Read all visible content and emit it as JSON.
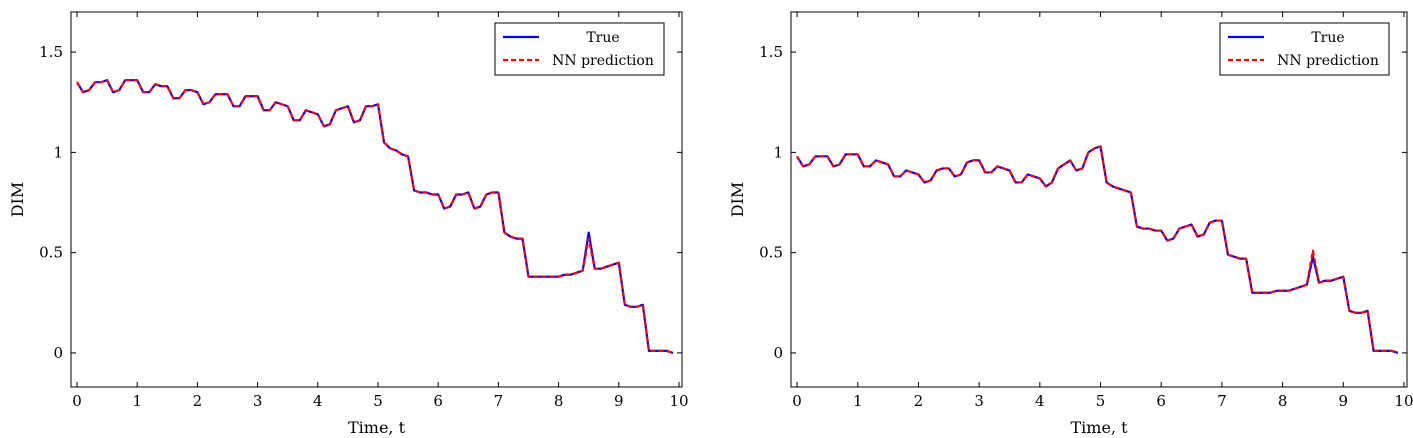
{
  "chart_data": [
    {
      "type": "line",
      "xlabel": "Time, t",
      "ylabel": "DIM",
      "xlim": [
        -0.1,
        10.05
      ],
      "ylim": [
        -0.17,
        1.7
      ],
      "xticks": [
        0,
        1,
        2,
        3,
        4,
        5,
        6,
        7,
        8,
        9,
        10
      ],
      "yticks": [
        0,
        0.5,
        1,
        1.5
      ],
      "ytick_labels": [
        "0",
        "0.5",
        "1",
        "1.5"
      ],
      "legend_position": "top-right",
      "x": [
        0,
        0.1,
        0.2,
        0.3,
        0.4,
        0.5,
        0.6,
        0.7,
        0.8,
        0.9,
        1.0,
        1.1,
        1.2,
        1.3,
        1.4,
        1.5,
        1.6,
        1.7,
        1.8,
        1.9,
        2.0,
        2.1,
        2.2,
        2.3,
        2.4,
        2.5,
        2.6,
        2.7,
        2.8,
        2.9,
        3.0,
        3.1,
        3.2,
        3.3,
        3.4,
        3.5,
        3.6,
        3.7,
        3.8,
        3.9,
        4.0,
        4.1,
        4.2,
        4.3,
        4.4,
        4.5,
        4.6,
        4.7,
        4.8,
        4.9,
        5.0,
        5.1,
        5.2,
        5.3,
        5.4,
        5.5,
        5.6,
        5.7,
        5.8,
        5.9,
        6.0,
        6.1,
        6.2,
        6.3,
        6.4,
        6.5,
        6.6,
        6.7,
        6.8,
        6.9,
        7.0,
        7.1,
        7.2,
        7.3,
        7.4,
        7.5,
        7.6,
        7.7,
        7.8,
        7.9,
        8.0,
        8.1,
        8.2,
        8.3,
        8.4,
        8.5,
        8.6,
        8.7,
        8.8,
        8.9,
        9.0,
        9.1,
        9.2,
        9.3,
        9.4,
        9.5,
        9.6,
        9.7,
        9.8,
        9.9
      ],
      "series": [
        {
          "name": "True",
          "color": "#0000ff",
          "dash": "solid",
          "values": [
            1.35,
            1.3,
            1.31,
            1.35,
            1.35,
            1.36,
            1.3,
            1.31,
            1.36,
            1.36,
            1.36,
            1.3,
            1.3,
            1.34,
            1.33,
            1.33,
            1.27,
            1.27,
            1.31,
            1.31,
            1.3,
            1.24,
            1.25,
            1.29,
            1.29,
            1.29,
            1.23,
            1.23,
            1.28,
            1.28,
            1.28,
            1.21,
            1.21,
            1.25,
            1.24,
            1.23,
            1.16,
            1.16,
            1.21,
            1.2,
            1.19,
            1.13,
            1.14,
            1.21,
            1.22,
            1.23,
            1.15,
            1.16,
            1.23,
            1.23,
            1.24,
            1.05,
            1.02,
            1.01,
            0.99,
            0.98,
            0.81,
            0.8,
            0.8,
            0.79,
            0.79,
            0.72,
            0.73,
            0.79,
            0.79,
            0.8,
            0.72,
            0.73,
            0.79,
            0.8,
            0.8,
            0.6,
            0.58,
            0.57,
            0.57,
            0.38,
            0.38,
            0.38,
            0.38,
            0.38,
            0.38,
            0.39,
            0.39,
            0.4,
            0.41,
            0.6,
            0.42,
            0.42,
            0.43,
            0.44,
            0.45,
            0.24,
            0.23,
            0.23,
            0.24,
            0.01,
            0.01,
            0.01,
            0.01,
            0.0
          ]
        },
        {
          "name": "NN prediction",
          "color": "#ff0000",
          "dash": "dashed",
          "values": [
            1.35,
            1.3,
            1.31,
            1.35,
            1.35,
            1.36,
            1.3,
            1.31,
            1.36,
            1.36,
            1.36,
            1.3,
            1.3,
            1.34,
            1.33,
            1.33,
            1.27,
            1.27,
            1.31,
            1.31,
            1.3,
            1.24,
            1.25,
            1.29,
            1.29,
            1.29,
            1.23,
            1.23,
            1.28,
            1.28,
            1.28,
            1.21,
            1.21,
            1.25,
            1.24,
            1.23,
            1.16,
            1.16,
            1.21,
            1.2,
            1.19,
            1.13,
            1.14,
            1.21,
            1.22,
            1.23,
            1.15,
            1.16,
            1.23,
            1.23,
            1.24,
            1.05,
            1.02,
            1.01,
            0.99,
            0.98,
            0.81,
            0.8,
            0.8,
            0.79,
            0.79,
            0.72,
            0.73,
            0.79,
            0.79,
            0.8,
            0.72,
            0.73,
            0.79,
            0.8,
            0.8,
            0.6,
            0.58,
            0.57,
            0.57,
            0.38,
            0.38,
            0.38,
            0.38,
            0.38,
            0.38,
            0.39,
            0.39,
            0.4,
            0.41,
            0.57,
            0.42,
            0.42,
            0.43,
            0.44,
            0.45,
            0.24,
            0.23,
            0.23,
            0.24,
            0.01,
            0.01,
            0.01,
            0.01,
            0.0
          ]
        }
      ]
    },
    {
      "type": "line",
      "xlabel": "Time, t",
      "ylabel": "DIM",
      "xlim": [
        -0.1,
        10.05
      ],
      "ylim": [
        -0.17,
        1.7
      ],
      "xticks": [
        0,
        1,
        2,
        3,
        4,
        5,
        6,
        7,
        8,
        9,
        10
      ],
      "yticks": [
        0,
        0.5,
        1,
        1.5
      ],
      "ytick_labels": [
        "0",
        "0.5",
        "1",
        "1.5"
      ],
      "legend_position": "top-right",
      "x": [
        0,
        0.1,
        0.2,
        0.3,
        0.4,
        0.5,
        0.6,
        0.7,
        0.8,
        0.9,
        1.0,
        1.1,
        1.2,
        1.3,
        1.4,
        1.5,
        1.6,
        1.7,
        1.8,
        1.9,
        2.0,
        2.1,
        2.2,
        2.3,
        2.4,
        2.5,
        2.6,
        2.7,
        2.8,
        2.9,
        3.0,
        3.1,
        3.2,
        3.3,
        3.4,
        3.5,
        3.6,
        3.7,
        3.8,
        3.9,
        4.0,
        4.1,
        4.2,
        4.3,
        4.4,
        4.5,
        4.6,
        4.7,
        4.8,
        4.9,
        5.0,
        5.1,
        5.2,
        5.3,
        5.4,
        5.5,
        5.6,
        5.7,
        5.8,
        5.9,
        6.0,
        6.1,
        6.2,
        6.3,
        6.4,
        6.5,
        6.6,
        6.7,
        6.8,
        6.9,
        7.0,
        7.1,
        7.2,
        7.3,
        7.4,
        7.5,
        7.6,
        7.7,
        7.8,
        7.9,
        8.0,
        8.1,
        8.2,
        8.3,
        8.4,
        8.5,
        8.6,
        8.7,
        8.8,
        8.9,
        9.0,
        9.1,
        9.2,
        9.3,
        9.4,
        9.5,
        9.6,
        9.7,
        9.8,
        9.9
      ],
      "series": [
        {
          "name": "True",
          "color": "#0000ff",
          "dash": "solid",
          "values": [
            0.98,
            0.93,
            0.94,
            0.98,
            0.98,
            0.98,
            0.93,
            0.94,
            0.99,
            0.99,
            0.99,
            0.93,
            0.93,
            0.96,
            0.95,
            0.94,
            0.88,
            0.88,
            0.91,
            0.9,
            0.89,
            0.85,
            0.86,
            0.91,
            0.92,
            0.92,
            0.88,
            0.89,
            0.95,
            0.96,
            0.96,
            0.9,
            0.9,
            0.93,
            0.92,
            0.91,
            0.85,
            0.85,
            0.89,
            0.88,
            0.87,
            0.83,
            0.85,
            0.92,
            0.94,
            0.96,
            0.91,
            0.92,
            1.0,
            1.02,
            1.03,
            0.85,
            0.83,
            0.82,
            0.81,
            0.8,
            0.63,
            0.62,
            0.62,
            0.61,
            0.61,
            0.56,
            0.57,
            0.62,
            0.63,
            0.64,
            0.58,
            0.59,
            0.65,
            0.66,
            0.66,
            0.49,
            0.48,
            0.47,
            0.47,
            0.3,
            0.3,
            0.3,
            0.3,
            0.31,
            0.31,
            0.31,
            0.32,
            0.33,
            0.34,
            0.48,
            0.35,
            0.36,
            0.36,
            0.37,
            0.38,
            0.21,
            0.2,
            0.2,
            0.21,
            0.01,
            0.01,
            0.01,
            0.01,
            0.0
          ]
        },
        {
          "name": "NN prediction",
          "color": "#ff0000",
          "dash": "dashed",
          "values": [
            0.98,
            0.93,
            0.94,
            0.98,
            0.98,
            0.98,
            0.93,
            0.94,
            0.99,
            0.99,
            0.99,
            0.93,
            0.93,
            0.96,
            0.95,
            0.94,
            0.88,
            0.88,
            0.91,
            0.9,
            0.89,
            0.85,
            0.86,
            0.91,
            0.92,
            0.92,
            0.88,
            0.89,
            0.95,
            0.96,
            0.96,
            0.9,
            0.9,
            0.93,
            0.92,
            0.91,
            0.85,
            0.85,
            0.89,
            0.88,
            0.87,
            0.83,
            0.85,
            0.92,
            0.94,
            0.96,
            0.91,
            0.92,
            1.0,
            1.02,
            1.03,
            0.85,
            0.83,
            0.82,
            0.81,
            0.8,
            0.63,
            0.62,
            0.62,
            0.61,
            0.61,
            0.56,
            0.57,
            0.62,
            0.63,
            0.64,
            0.58,
            0.59,
            0.65,
            0.66,
            0.66,
            0.49,
            0.48,
            0.47,
            0.47,
            0.3,
            0.3,
            0.3,
            0.3,
            0.31,
            0.31,
            0.31,
            0.32,
            0.33,
            0.34,
            0.51,
            0.35,
            0.36,
            0.36,
            0.37,
            0.38,
            0.21,
            0.2,
            0.2,
            0.21,
            0.01,
            0.01,
            0.01,
            0.01,
            0.0
          ]
        }
      ]
    }
  ]
}
